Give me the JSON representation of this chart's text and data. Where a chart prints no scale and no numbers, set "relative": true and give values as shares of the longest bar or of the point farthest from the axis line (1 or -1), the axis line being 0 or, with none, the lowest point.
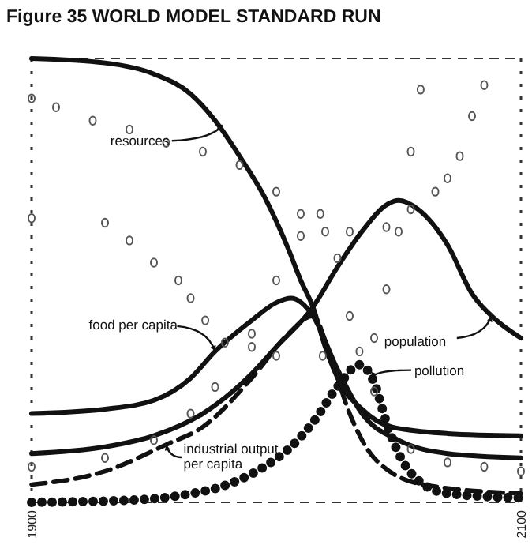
{
  "chart_data": {
    "type": "line",
    "title": "Figure 35 WORLD MODEL STANDARD RUN",
    "relative": true,
    "xlim": [
      1900,
      2100
    ],
    "xticks": [
      1900,
      2100
    ],
    "grid": false,
    "series": [
      {
        "color": "#111111",
        "line_style": "solid",
        "x": [
          1900,
          1930,
          1950,
          1965,
          1975,
          1985,
          1995,
          2005,
          2010,
          2015,
          2020,
          2026,
          2035,
          2047,
          2070,
          2100
        ],
        "values": [
          1,
          0.99,
          0.965,
          0.92,
          0.86,
          0.78,
          0.69,
          0.57,
          0.5,
          0.44,
          0.35,
          0.27,
          0.21,
          0.17,
          0.155,
          0.15
        ]
      },
      {
        "color": "#111111",
        "line_style": "solid",
        "x": [
          1900,
          1930,
          1950,
          1970,
          1990,
          2000,
          2015,
          2025,
          2035,
          2045,
          2050,
          2058,
          2070,
          2080,
          2090,
          2100
        ],
        "values": [
          0.11,
          0.125,
          0.15,
          0.2,
          0.29,
          0.35,
          0.44,
          0.53,
          0.61,
          0.67,
          0.68,
          0.66,
          0.58,
          0.47,
          0.41,
          0.37
        ]
      },
      {
        "color": "#111111",
        "line_style": "solid",
        "x": [
          1900,
          1930,
          1950,
          1965,
          1975,
          1990,
          2000,
          2006,
          2015,
          2025,
          2035,
          2050,
          2070,
          2100
        ],
        "values": [
          0.2,
          0.21,
          0.23,
          0.28,
          0.34,
          0.41,
          0.45,
          0.46,
          0.42,
          0.3,
          0.2,
          0.14,
          0.11,
          0.1
        ]
      },
      {
        "color": "#111111",
        "line_style": "dashed",
        "x": [
          1900,
          1930,
          1955,
          1970,
          1990,
          2005,
          2015,
          2022,
          2030,
          2040,
          2060,
          2100
        ],
        "values": [
          0.04,
          0.07,
          0.13,
          0.17,
          0.28,
          0.38,
          0.42,
          0.33,
          0.2,
          0.1,
          0.04,
          0.02
        ]
      },
      {
        "color": "#111111",
        "line_style": "dotted",
        "x": [
          1900,
          1940,
          1960,
          1980,
          1995,
          2005,
          2015,
          2025,
          2034,
          2040,
          2045,
          2050,
          2058,
          2070,
          2100
        ],
        "values": [
          0,
          0.005,
          0.015,
          0.04,
          0.08,
          0.12,
          0.18,
          0.26,
          0.31,
          0.27,
          0.18,
          0.11,
          0.05,
          0.02,
          0.01
        ]
      },
      {
        "type": "scatter",
        "marker": "circle",
        "color": "#555555",
        "x": [
          1900,
          1910,
          1925,
          1940,
          1955,
          1970,
          1985,
          2000,
          2010,
          2020,
          2030,
          2045,
          2055,
          2065,
          2070,
          2075,
          2080,
          2085
        ],
        "values": [
          0.91,
          0.89,
          0.86,
          0.84,
          0.81,
          0.79,
          0.76,
          0.7,
          0.65,
          0.61,
          0.61,
          0.62,
          0.66,
          0.7,
          0.73,
          0.78,
          0.87,
          0.94
        ]
      },
      {
        "type": "scatter",
        "marker": "circle",
        "color": "#555555",
        "x": [
          1900,
          1930,
          1940,
          1950,
          1960,
          1965,
          1971,
          1979,
          1990,
          2000,
          2019,
          2034,
          2040,
          2045,
          2050,
          2055,
          2059
        ],
        "values": [
          0.64,
          0.63,
          0.59,
          0.54,
          0.5,
          0.46,
          0.41,
          0.36,
          0.35,
          0.33,
          0.33,
          0.34,
          0.37,
          0.48,
          0.61,
          0.79,
          0.93
        ]
      },
      {
        "type": "scatter",
        "marker": "circle",
        "color": "#555555",
        "x": [
          1900,
          1930,
          1950,
          1965,
          1975,
          1990,
          2000,
          2010,
          2018,
          2025,
          2030,
          2040,
          2055,
          2070,
          2085,
          2100
        ],
        "values": [
          0.08,
          0.1,
          0.14,
          0.2,
          0.26,
          0.38,
          0.5,
          0.6,
          0.65,
          0.55,
          0.42,
          0.25,
          0.12,
          0.09,
          0.08,
          0.07
        ]
      }
    ],
    "annotations": [
      {
        "text": "resources",
        "x": 1978,
        "y": 0.85
      },
      {
        "text": "food per capita",
        "x": 1975,
        "y": 0.34
      },
      {
        "text": "industrial output\nper capita",
        "x": 1955,
        "y": 0.13
      },
      {
        "text": "population",
        "x": 2088,
        "y": 0.42
      },
      {
        "text": "pollution",
        "x": 2039,
        "y": 0.28
      }
    ]
  }
}
